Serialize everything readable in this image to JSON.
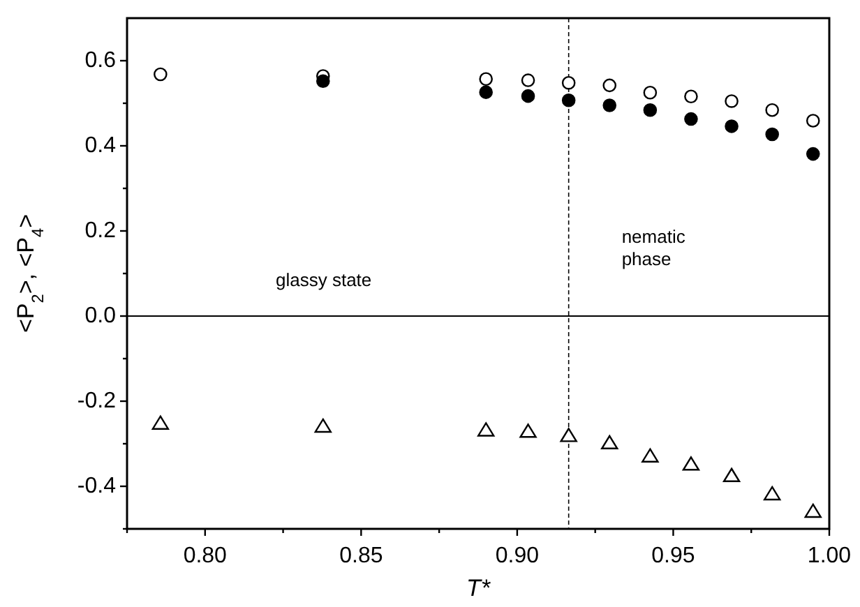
{
  "chart_data": {
    "type": "scatter",
    "xlabel": "T*",
    "ylabel": "<P$_{2}$>, <P$_{4}$>",
    "x": [
      0.7857,
      0.8378,
      0.89,
      0.9035,
      0.9165,
      0.9296,
      0.9426,
      0.9557,
      0.9687,
      0.9817,
      0.9948
    ],
    "series": [
      {
        "color": "#ffffff",
        "marker": "circle",
        "values": [
          0.568,
          0.564,
          0.557,
          0.554,
          0.548,
          0.542,
          0.525,
          0.516,
          0.505,
          0.484,
          0.459
        ]
      },
      {
        "color": "#000000",
        "marker": "circle",
        "values": [
          null,
          0.552,
          0.526,
          0.517,
          0.507,
          0.495,
          0.484,
          0.463,
          0.446,
          0.427,
          0.381
        ]
      },
      {
        "color": "#ffffff",
        "marker": "triangle",
        "values": [
          -0.252,
          -0.259,
          -0.268,
          -0.271,
          -0.281,
          -0.298,
          -0.329,
          -0.348,
          -0.375,
          -0.418,
          -0.459
        ]
      }
    ],
    "xlim": [
      0.775,
      1.0
    ],
    "xticks": [
      {
        "value": 0.775,
        "label": null
      },
      {
        "value": 0.8,
        "label": "0.80"
      },
      {
        "value": 0.825,
        "label": null
      },
      {
        "value": 0.85,
        "label": "0.85"
      },
      {
        "value": 0.875,
        "label": null
      },
      {
        "value": 0.9,
        "label": "0.90"
      },
      {
        "value": 0.925,
        "label": null
      },
      {
        "value": 0.95,
        "label": "0.95"
      },
      {
        "value": 0.975,
        "label": null
      },
      {
        "value": 1.0,
        "label": "1.00"
      }
    ],
    "ylim": [
      -0.5,
      0.7
    ],
    "yticks": [
      {
        "value": -0.5,
        "label": null
      },
      -0.4,
      {
        "value": -0.3,
        "label": null
      },
      -0.2,
      {
        "value": -0.1,
        "label": null
      },
      {
        "value": 0,
        "label": "0.0"
      },
      {
        "value": 0.1,
        "label": null
      },
      0.2,
      {
        "value": 0.3,
        "label": null
      },
      0.4,
      {
        "value": 0.5,
        "label": null
      },
      0.6
    ],
    "ref_lines": [
      {
        "axis": "x",
        "value": 0.9165,
        "line_style": "dashed",
        "color": "#000000"
      },
      {
        "axis": "y",
        "value": 0,
        "line_style": "solid",
        "color": "#000000"
      }
    ],
    "annotations": [
      "glassy state",
      "nematic\nphase"
    ],
    "grid": false
  }
}
